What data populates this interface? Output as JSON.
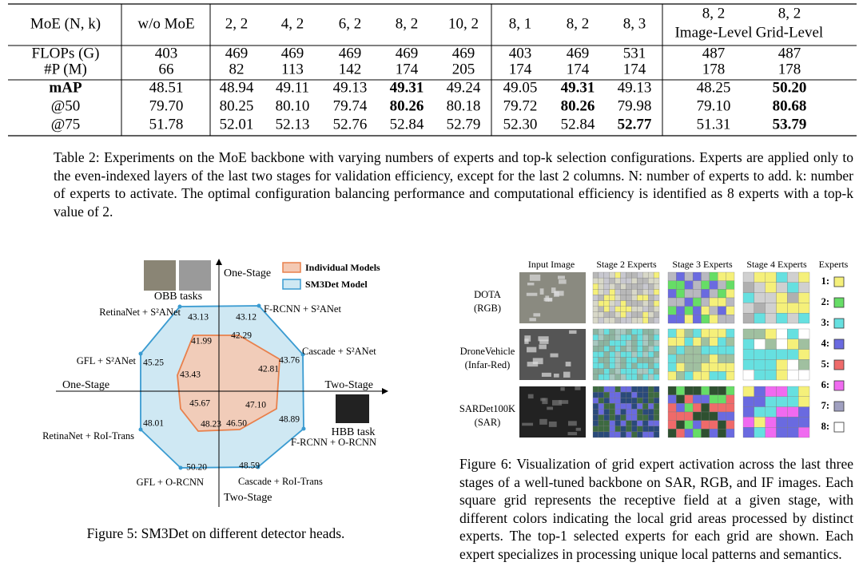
{
  "table": {
    "header": [
      "MoE (N, k)",
      "w/o MoE",
      "2, 2",
      "4, 2",
      "6, 2",
      "8, 2",
      "10, 2",
      "8, 1",
      "8, 2",
      "8, 3",
      [
        "8, 2",
        "Image-Level"
      ],
      [
        "8, 2",
        "Grid-Level"
      ]
    ],
    "rows": [
      {
        "label": "FLOPs (G)",
        "cells": [
          "403",
          "469",
          "469",
          "469",
          "469",
          "469",
          "403",
          "469",
          "531",
          "487",
          "487"
        ]
      },
      {
        "label": "#P (M)",
        "cells": [
          "66",
          "82",
          "113",
          "142",
          "174",
          "205",
          "174",
          "174",
          "174",
          "178",
          "178"
        ]
      },
      {
        "label": {
          "text": "mAP",
          "bold": true
        },
        "cells": [
          "48.51",
          "48.94",
          "49.11",
          "49.13",
          {
            "text": "49.31",
            "bold": true
          },
          "49.24",
          "49.05",
          {
            "text": "49.31",
            "bold": true
          },
          "49.13",
          "48.25",
          {
            "text": "50.20",
            "bold": true
          }
        ]
      },
      {
        "label": "@50",
        "cells": [
          "79.70",
          "80.25",
          "80.10",
          "79.74",
          {
            "text": "80.26",
            "bold": true
          },
          "80.18",
          "79.72",
          {
            "text": "80.26",
            "bold": true
          },
          "79.98",
          "79.10",
          {
            "text": "80.68",
            "bold": true
          }
        ]
      },
      {
        "label": "@75",
        "cells": [
          "51.78",
          "52.01",
          "52.13",
          "52.76",
          "52.84",
          "52.79",
          "52.30",
          "52.84",
          {
            "text": "52.77",
            "bold": true
          },
          "51.31",
          {
            "text": "53.79",
            "bold": true
          }
        ]
      }
    ],
    "caption": "Table 2: Experiments on the MoE backbone with varying numbers of experts and top-k selection configurations. Experts are applied only to the even-indexed layers of the last two stages for validation efficiency, except for the last 2 columns. N: number of experts to add. k: number of experts to activate. The optimal configuration balancing performance and computational efficiency is identified as 8 experts with a top-k value of 2."
  },
  "figure5": {
    "legend": [
      "Individual Models",
      "SM3Det Model"
    ],
    "axis_labels": {
      "top": "One-Stage",
      "left": "One-Stage",
      "right": "Two-Stage",
      "bottom": "Two-Stage"
    },
    "task_labels": [
      "OBB tasks",
      "HBB task"
    ],
    "spokes": [
      {
        "name": "F-RCNN + S²ANet",
        "individual": "42.29",
        "sm3det": "43.12"
      },
      {
        "name": "Cascade + S²ANet",
        "individual": "42.81",
        "sm3det": "43.76"
      },
      {
        "name": "F-RCNN + O-RCNN",
        "individual": "47.10",
        "sm3det": "48.89"
      },
      {
        "name": "Cascade + RoI-Trans",
        "individual": "46.50",
        "sm3det": "48.59"
      },
      {
        "name": "GFL + O-RCNN",
        "individual": "48.23",
        "sm3det": "50.20"
      },
      {
        "name": "RetinaNet + RoI-Trans",
        "individual": "45.67",
        "sm3det": "48.01"
      },
      {
        "name": "GFL + S²ANet",
        "individual": "43.43",
        "sm3det": "45.25"
      },
      {
        "name": "RetinaNet + S²ANet",
        "individual": "41.99",
        "sm3det": "43.13"
      }
    ],
    "caption": "Figure 5: SM3Det on different detector heads."
  },
  "figure6": {
    "columns": [
      "Input Image",
      "Stage 2 Experts",
      "Stage 3 Experts",
      "Stage 4 Experts",
      "Experts"
    ],
    "rows": [
      {
        "name": "DOTA",
        "modality": "(RGB)"
      },
      {
        "name": "DroneVehicle",
        "modality": "(Infar-Red)"
      },
      {
        "name": "SARDet100K",
        "modality": "(SAR)"
      }
    ],
    "experts": [
      "1:",
      "2:",
      "3:",
      "4:",
      "5:",
      "6:",
      "7:",
      "8:"
    ],
    "caption": "Figure 6: Visualization of grid expert activation across the last three stages of a well-tuned backbone on SAR, RGB, and IF images. Each square grid represents the receptive field at a given stage, with different colors indicating the local grid areas processed by distinct experts. The top-1 selected experts for each grid are shown. Each expert specializes in processing unique local patterns and semantics."
  }
}
